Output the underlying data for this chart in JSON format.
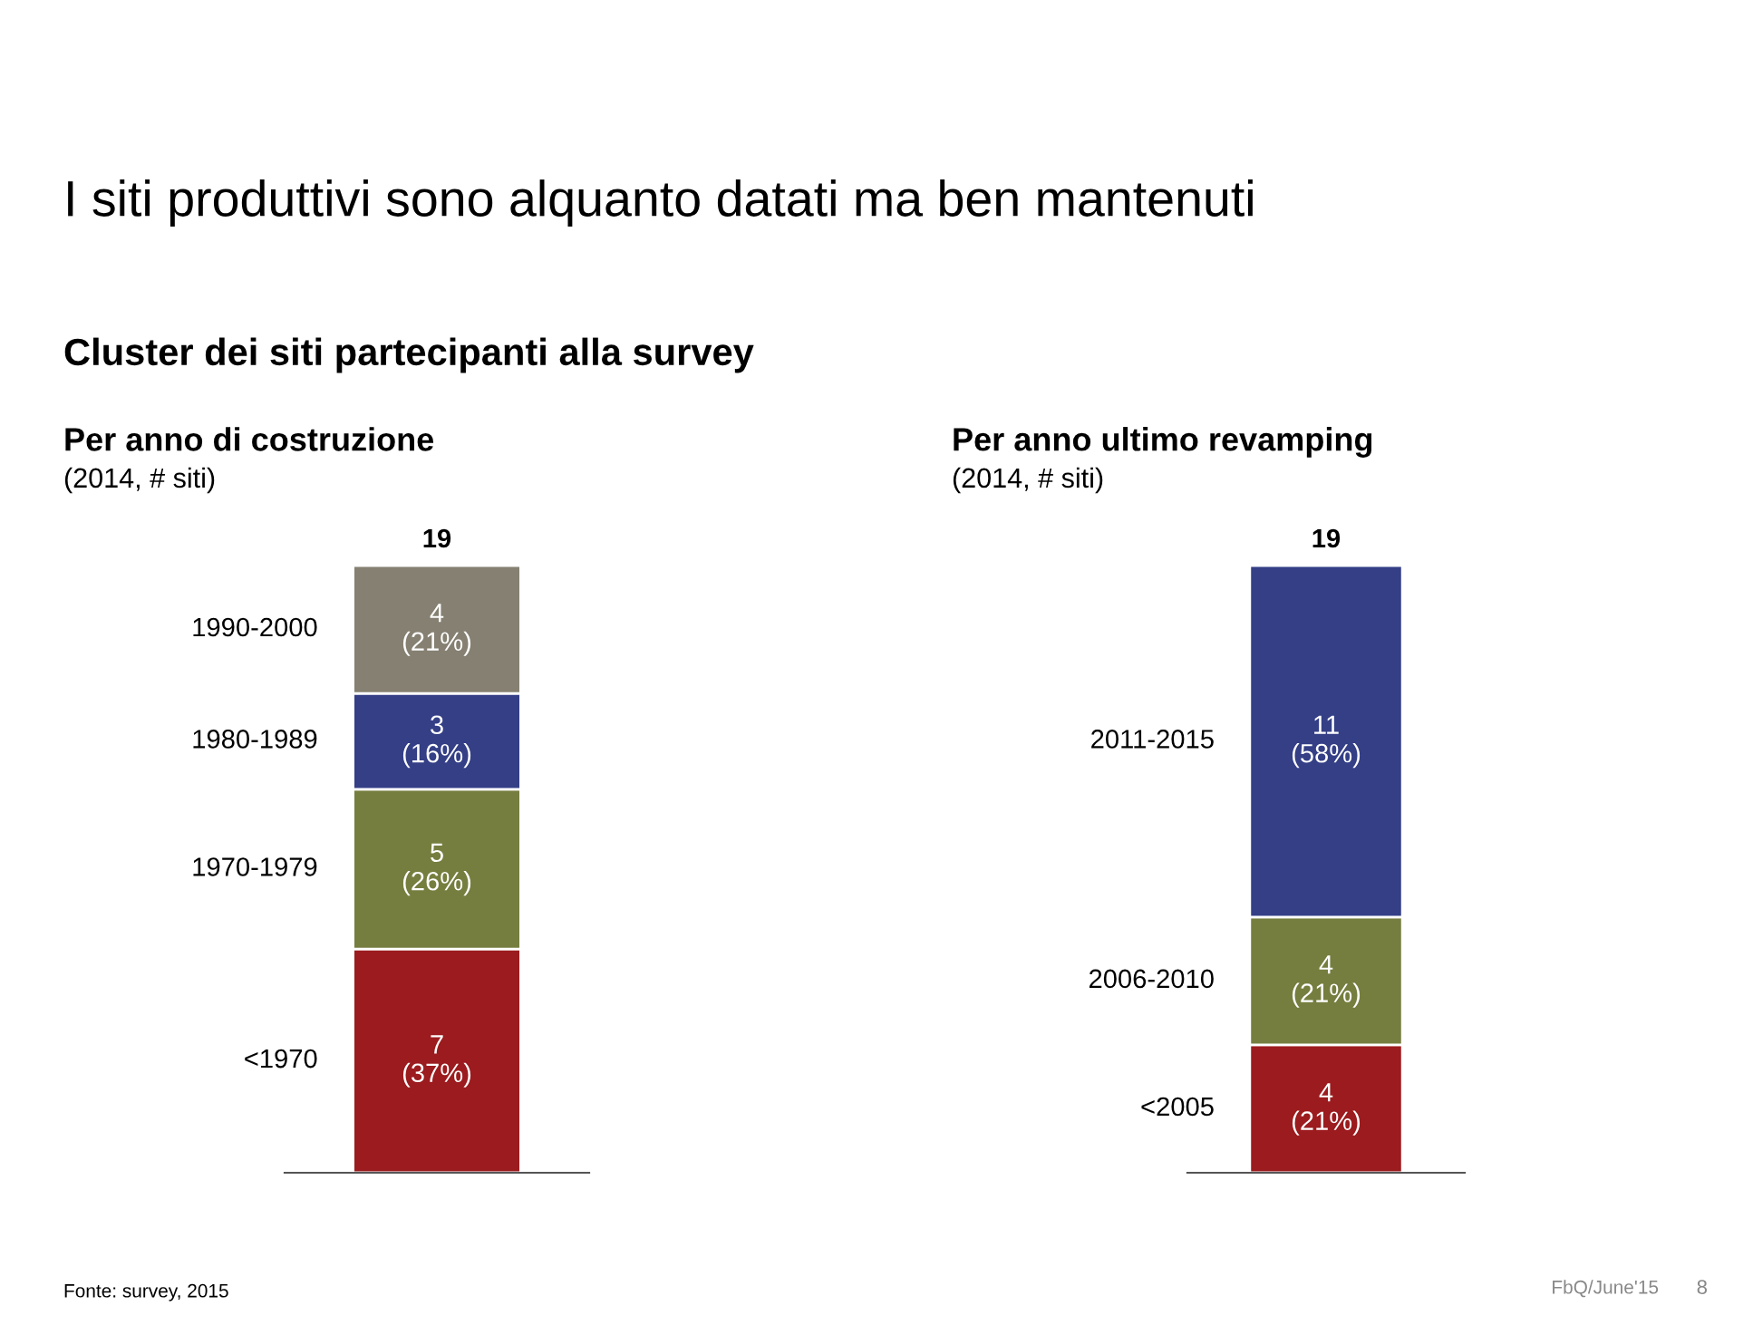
{
  "chart_data": [
    {
      "type": "bar",
      "stacked": true,
      "title": "Per anno di costruzione",
      "subtitle": "(2014, # siti)",
      "categories": [
        null
      ],
      "totals": [
        "19"
      ],
      "annotations": [
        "I siti produttivi sono alquanto datati ma ben mantenuti",
        "Cluster dei siti partecipanti alla survey",
        "Fonte: survey, 2015"
      ],
      "series": [
        {
          "name": "<1970",
          "color": "#9b1b1e",
          "values": [
            7
          ],
          "value_labels": [
            "7\n(37%)"
          ]
        },
        {
          "name": "1970-1979",
          "color": "#767e3f",
          "values": [
            5
          ],
          "value_labels": [
            "5\n(26%)"
          ]
        },
        {
          "name": "1980-1989",
          "color": "#343f86",
          "values": [
            3
          ],
          "value_labels": [
            "3\n(16%)"
          ]
        },
        {
          "name": "1990-2000",
          "color": "#858071",
          "values": [
            4
          ],
          "value_labels": [
            "4\n(21%)"
          ]
        }
      ]
    },
    {
      "type": "bar",
      "stacked": true,
      "title": "Per anno ultimo revamping",
      "subtitle": "(2014, # siti)",
      "categories": [
        null
      ],
      "totals": [
        "19"
      ],
      "annotations": [
        "FbQ/June'15",
        "8"
      ],
      "series": [
        {
          "name": "<2005",
          "color": "#9b1b1e",
          "values": [
            4
          ],
          "value_labels": [
            "4\n(21%)"
          ]
        },
        {
          "name": "2006-2010",
          "color": "#767e3f",
          "values": [
            4
          ],
          "value_labels": [
            "4\n(21%)"
          ]
        },
        {
          "name": "2011-2015",
          "color": "#343f86",
          "values": [
            11
          ],
          "value_labels": [
            "11\n(58%)"
          ]
        }
      ]
    }
  ]
}
